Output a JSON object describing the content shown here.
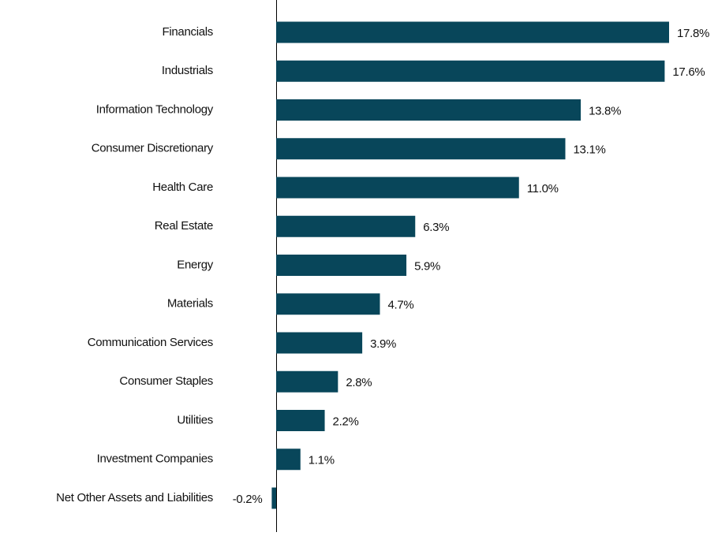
{
  "chart_data": {
    "type": "hbar",
    "categories": [
      "Financials",
      "Industrials",
      "Information Technology",
      "Consumer Discretionary",
      "Health Care",
      "Real Estate",
      "Energy",
      "Materials",
      "Communication Services",
      "Consumer Staples",
      "Utilities",
      "Investment Companies",
      "Net Other Assets and Liabilities"
    ],
    "values": [
      17.8,
      17.6,
      13.8,
      13.1,
      11.0,
      6.3,
      5.9,
      4.7,
      3.9,
      2.8,
      2.2,
      1.1,
      -0.2
    ],
    "value_labels": [
      "17.8%",
      "17.6%",
      "13.8%",
      "13.1%",
      "11.0%",
      "6.3%",
      "5.9%",
      "4.7%",
      "3.9%",
      "2.8%",
      "2.2%",
      "1.1%",
      "-0.2%"
    ],
    "color": "#08465a"
  }
}
